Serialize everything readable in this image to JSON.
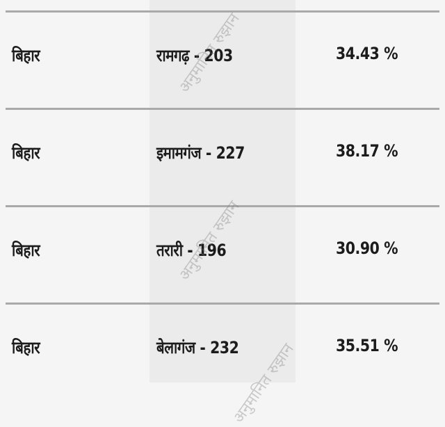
{
  "watermark": "अनुमानित रुझान",
  "rows": [
    {
      "state": "बिहार",
      "constituency": "रामगढ़ - 203",
      "percent": "34.43 %"
    },
    {
      "state": "बिहार",
      "constituency": "इमामगंज - 227",
      "percent": "38.17 %"
    },
    {
      "state": "बिहार",
      "constituency": "तरारी - 196",
      "percent": "30.90 %"
    },
    {
      "state": "बिहार",
      "constituency": "बेलागंज - 232",
      "percent": "35.51 %"
    }
  ]
}
